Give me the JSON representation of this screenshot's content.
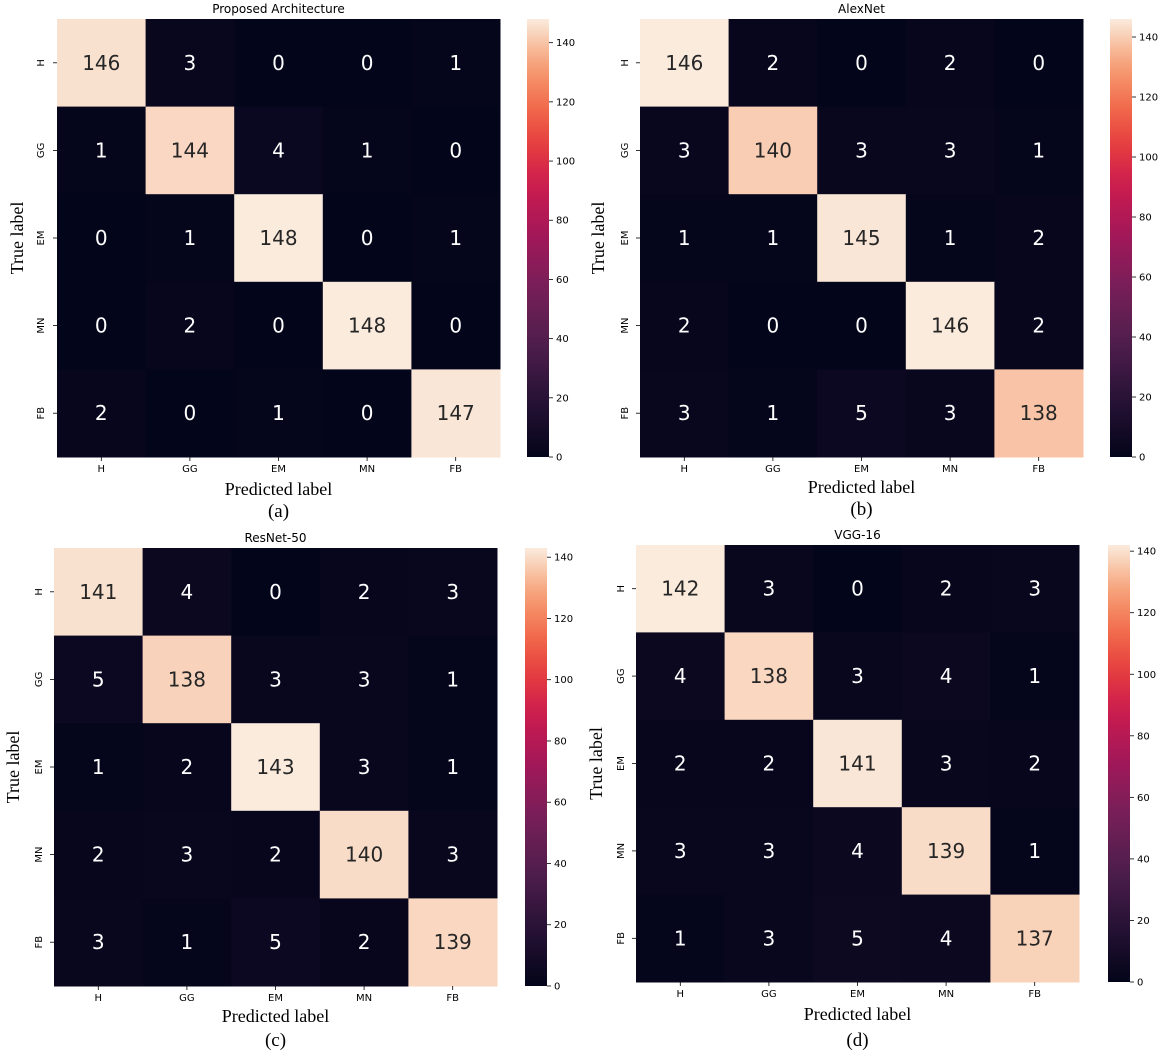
{
  "chart_data": [
    {
      "type": "heatmap",
      "title": "Proposed Architecture",
      "caption": "(a)",
      "xlabel": "Predicted label",
      "ylabel": "True label",
      "x_categories": [
        "H",
        "GG",
        "EM",
        "MN",
        "FB"
      ],
      "y_categories": [
        "H",
        "GG",
        "EM",
        "MN",
        "FB"
      ],
      "values": [
        [
          146,
          3,
          0,
          0,
          1
        ],
        [
          1,
          144,
          4,
          1,
          0
        ],
        [
          0,
          1,
          148,
          0,
          1
        ],
        [
          0,
          2,
          0,
          148,
          0
        ],
        [
          2,
          0,
          1,
          0,
          147
        ]
      ],
      "colorbar": {
        "min": 0,
        "max": 148,
        "ticks": [
          0,
          20,
          40,
          60,
          80,
          100,
          120,
          140
        ]
      }
    },
    {
      "type": "heatmap",
      "title": "AlexNet",
      "caption": "(b)",
      "xlabel": "Predicted label",
      "ylabel": "True label",
      "x_categories": [
        "H",
        "GG",
        "EM",
        "MN",
        "FB"
      ],
      "y_categories": [
        "H",
        "GG",
        "EM",
        "MN",
        "FB"
      ],
      "values": [
        [
          146,
          2,
          0,
          2,
          0
        ],
        [
          3,
          140,
          3,
          3,
          1
        ],
        [
          1,
          1,
          145,
          1,
          2
        ],
        [
          2,
          0,
          0,
          146,
          2
        ],
        [
          3,
          1,
          5,
          3,
          138
        ]
      ],
      "colorbar": {
        "min": 0,
        "max": 146,
        "ticks": [
          0,
          20,
          40,
          60,
          80,
          100,
          120,
          140
        ]
      }
    },
    {
      "type": "heatmap",
      "title": "ResNet-50",
      "caption": "(c)",
      "xlabel": "Predicted label",
      "ylabel": "True label",
      "x_categories": [
        "H",
        "GG",
        "EM",
        "MN",
        "FB"
      ],
      "y_categories": [
        "H",
        "GG",
        "EM",
        "MN",
        "FB"
      ],
      "values": [
        [
          141,
          4,
          0,
          2,
          3
        ],
        [
          5,
          138,
          3,
          3,
          1
        ],
        [
          1,
          2,
          143,
          3,
          1
        ],
        [
          2,
          3,
          2,
          140,
          3
        ],
        [
          3,
          1,
          5,
          2,
          139
        ]
      ],
      "colorbar": {
        "min": 0,
        "max": 143,
        "ticks": [
          0,
          20,
          40,
          60,
          80,
          100,
          120,
          140
        ]
      }
    },
    {
      "type": "heatmap",
      "title": "VGG-16",
      "caption": "(d)",
      "xlabel": "Predicted label",
      "ylabel": "True label",
      "x_categories": [
        "H",
        "GG",
        "EM",
        "MN",
        "FB"
      ],
      "y_categories": [
        "H",
        "GG",
        "EM",
        "MN",
        "FB"
      ],
      "values": [
        [
          142,
          3,
          0,
          2,
          3
        ],
        [
          4,
          138,
          3,
          4,
          1
        ],
        [
          2,
          2,
          141,
          3,
          2
        ],
        [
          3,
          3,
          4,
          139,
          1
        ],
        [
          1,
          3,
          5,
          4,
          137
        ]
      ],
      "colorbar": {
        "min": 0,
        "max": 142,
        "ticks": [
          0,
          20,
          40,
          60,
          80,
          100,
          120,
          140
        ]
      }
    }
  ]
}
